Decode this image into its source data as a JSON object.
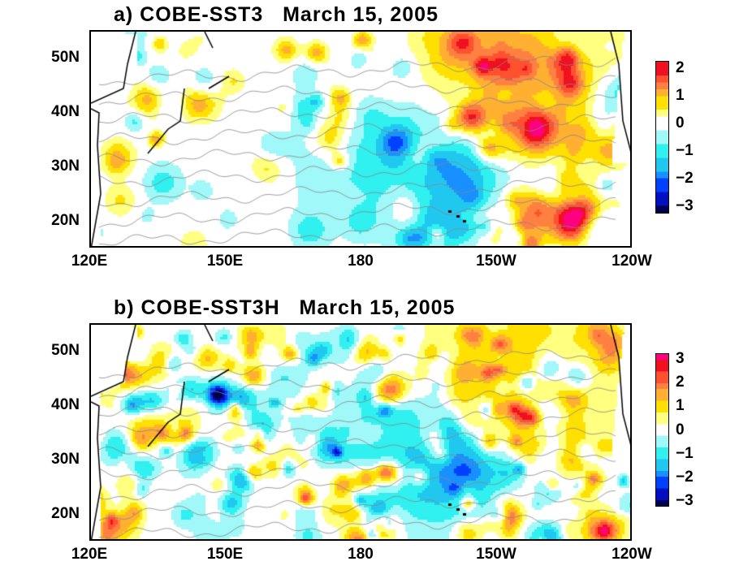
{
  "panels": [
    {
      "title": "a) COBE-SST3   March 15, 2005",
      "colorbar": {
        "labels": [
          "2",
          "1",
          "0",
          "−1",
          "−2",
          "−3"
        ],
        "range": [
          -3.25,
          2.25
        ]
      },
      "seed": 7
    },
    {
      "title": "b) COBE-SST3H   March 15, 2005",
      "colorbar": {
        "labels": [
          "3",
          "2",
          "1",
          "0",
          "−1",
          "−2",
          "−3"
        ],
        "range": [
          -3.25,
          3.25
        ]
      },
      "seed": 19
    }
  ],
  "axes": {
    "y_ticks": [
      "50N",
      "40N",
      "30N",
      "20N"
    ],
    "y_values": [
      50,
      40,
      30,
      20
    ],
    "x_ticks": [
      "120E",
      "150E",
      "180",
      "150W",
      "120W"
    ],
    "lat_range": [
      15,
      55
    ],
    "lon_range": [
      120,
      240
    ]
  },
  "colors": {
    "colormap": [
      "#000050",
      "#0010c0",
      "#0040ff",
      "#1890ff",
      "#20c8f0",
      "#30f0f0",
      "#a0f8f8",
      "#ffffff",
      "#ffff80",
      "#ffe000",
      "#ffb030",
      "#ff8040",
      "#ff5030",
      "#f01020",
      "#ff0080"
    ]
  }
}
